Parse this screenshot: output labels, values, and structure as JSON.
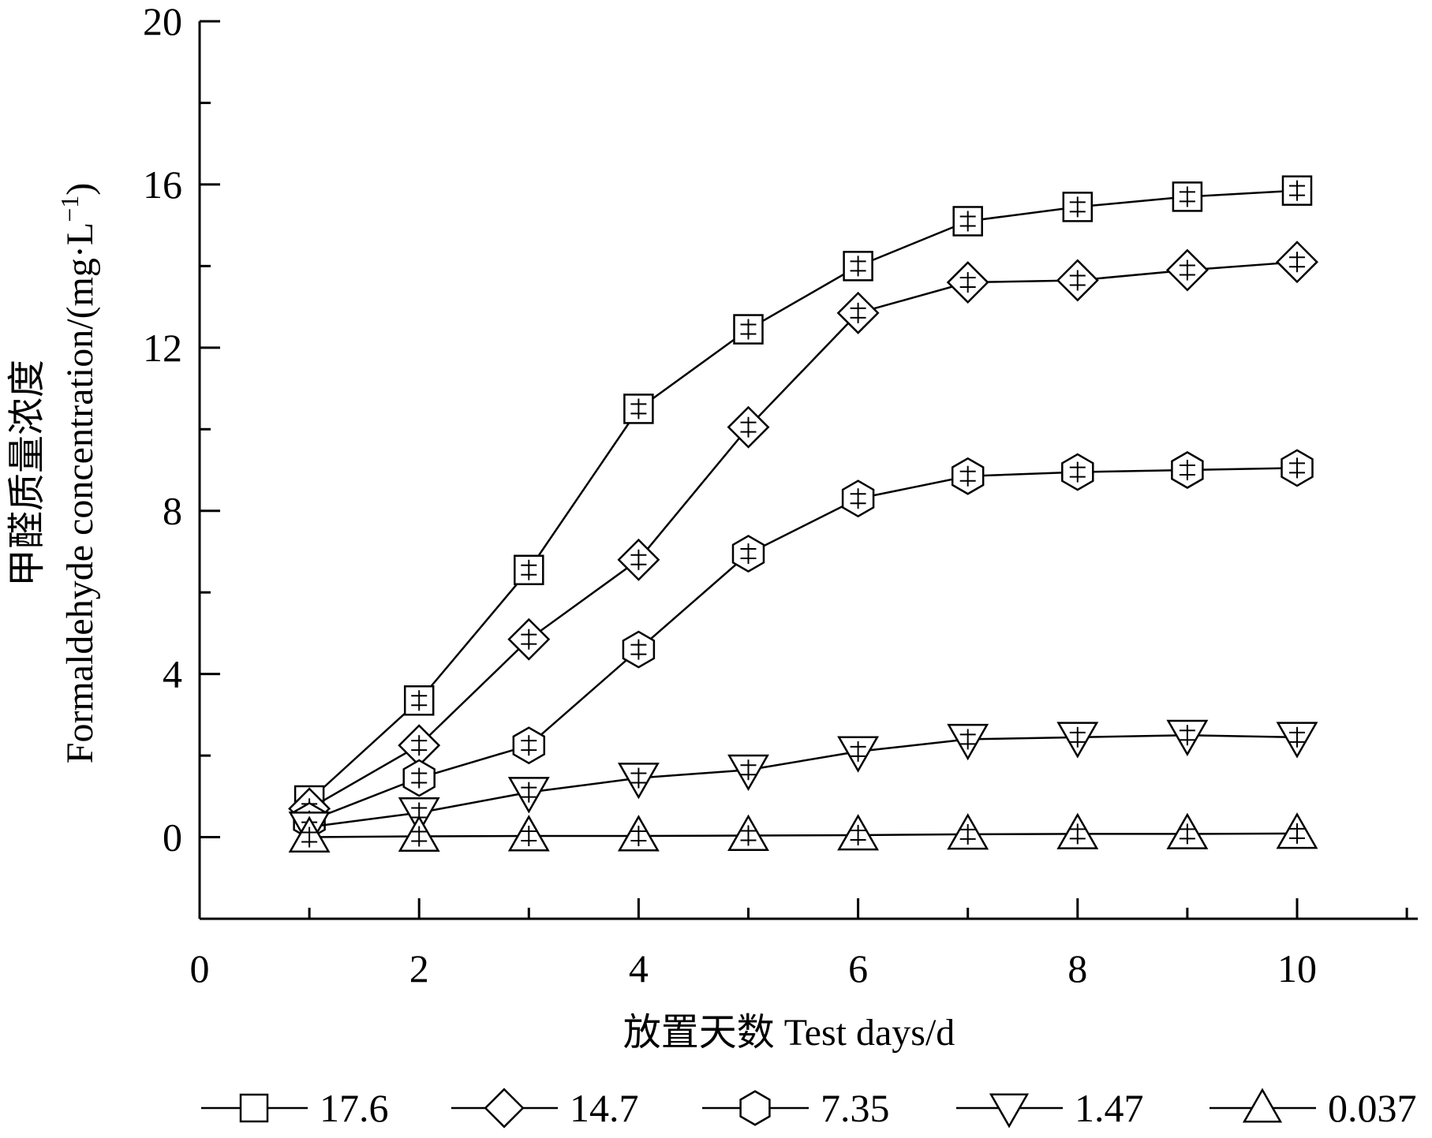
{
  "chart_data": {
    "type": "line",
    "xlabel": "放置天数  Test days/d",
    "ylabel_cn": "甲醛质量浓度",
    "ylabel_en": "Formaldehyde concentration/(mg·L",
    "ylabel_sup": "−1",
    "ylabel_close": ")",
    "xlim": [
      0,
      11.1
    ],
    "ylim": [
      -2,
      20
    ],
    "xticks": [
      0,
      2,
      4,
      6,
      8,
      10
    ],
    "xtick_labels": [
      "0",
      "2",
      "4",
      "6",
      "8",
      "10"
    ],
    "yticks": [
      0,
      4,
      8,
      12,
      16,
      20
    ],
    "ytick_labels": [
      "0",
      "4",
      "8",
      "12",
      "16",
      "20"
    ],
    "x": [
      1,
      2,
      3,
      4,
      5,
      6,
      7,
      8,
      9,
      10
    ],
    "legend_position": "bottom",
    "series": [
      {
        "name": "17.6",
        "marker": "square",
        "values": [
          0.9,
          3.35,
          6.55,
          10.5,
          12.45,
          14.0,
          15.1,
          15.45,
          15.7,
          15.85
        ]
      },
      {
        "name": "14.7",
        "marker": "diamond",
        "values": [
          0.7,
          2.25,
          4.85,
          6.8,
          10.05,
          12.85,
          13.6,
          13.65,
          13.9,
          14.1
        ]
      },
      {
        "name": "7.35",
        "marker": "hexagon",
        "values": [
          0.4,
          1.45,
          2.25,
          4.6,
          6.95,
          8.3,
          8.85,
          8.95,
          9.0,
          9.05
        ]
      },
      {
        "name": "1.47",
        "marker": "triangle-down",
        "values": [
          0.25,
          0.6,
          1.1,
          1.45,
          1.65,
          2.1,
          2.4,
          2.45,
          2.5,
          2.45
        ]
      },
      {
        "name": "0.037",
        "marker": "triangle-up",
        "values": [
          0.0,
          0.02,
          0.03,
          0.03,
          0.04,
          0.05,
          0.07,
          0.08,
          0.08,
          0.09
        ]
      }
    ]
  }
}
